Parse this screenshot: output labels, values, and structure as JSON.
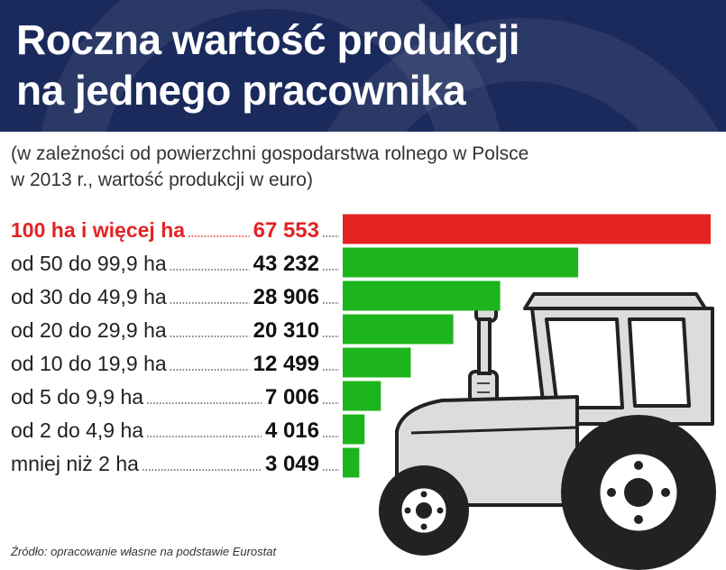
{
  "header": {
    "title_line1": "Roczna wartość produkcji",
    "title_line2": "na jednego pracownika"
  },
  "subtitle": {
    "line1": "(w zależności od powierzchni gospodarstwa rolnego w Polsce",
    "line2": "w 2013 r., wartość produkcji w euro)"
  },
  "source": "Źródło: opracowanie własne na podstawie Eurostat",
  "colors": {
    "header_bg": "#1b2a5c",
    "highlight": "#e42323",
    "bar": "#1db51d",
    "tractor_body": "#dcdcdc",
    "tractor_outline": "#222222"
  },
  "illustration": "tractor-icon",
  "chart_data": {
    "type": "bar",
    "orientation": "horizontal",
    "categories": [
      "100 ha i więcej ha",
      "od 50 do 99,9 ha",
      "od 30 do 49,9 ha",
      "od 20 do 29,9 ha",
      "od 10 do 19,9 ha",
      "od 5 do 9,9 ha",
      "od 2 do 4,9 ha",
      "mniej niż 2 ha"
    ],
    "values": [
      67553,
      43232,
      28906,
      20310,
      12499,
      7006,
      4016,
      3049
    ],
    "value_labels": [
      "67 553",
      "43 232",
      "28 906",
      "20 310",
      "12 499",
      "7 006",
      "4 016",
      "3 049"
    ],
    "highlight_index": 0,
    "title": "Roczna wartość produkcji na jednego pracownika",
    "xlabel": "",
    "ylabel": "",
    "grid": false,
    "legend": "none"
  }
}
